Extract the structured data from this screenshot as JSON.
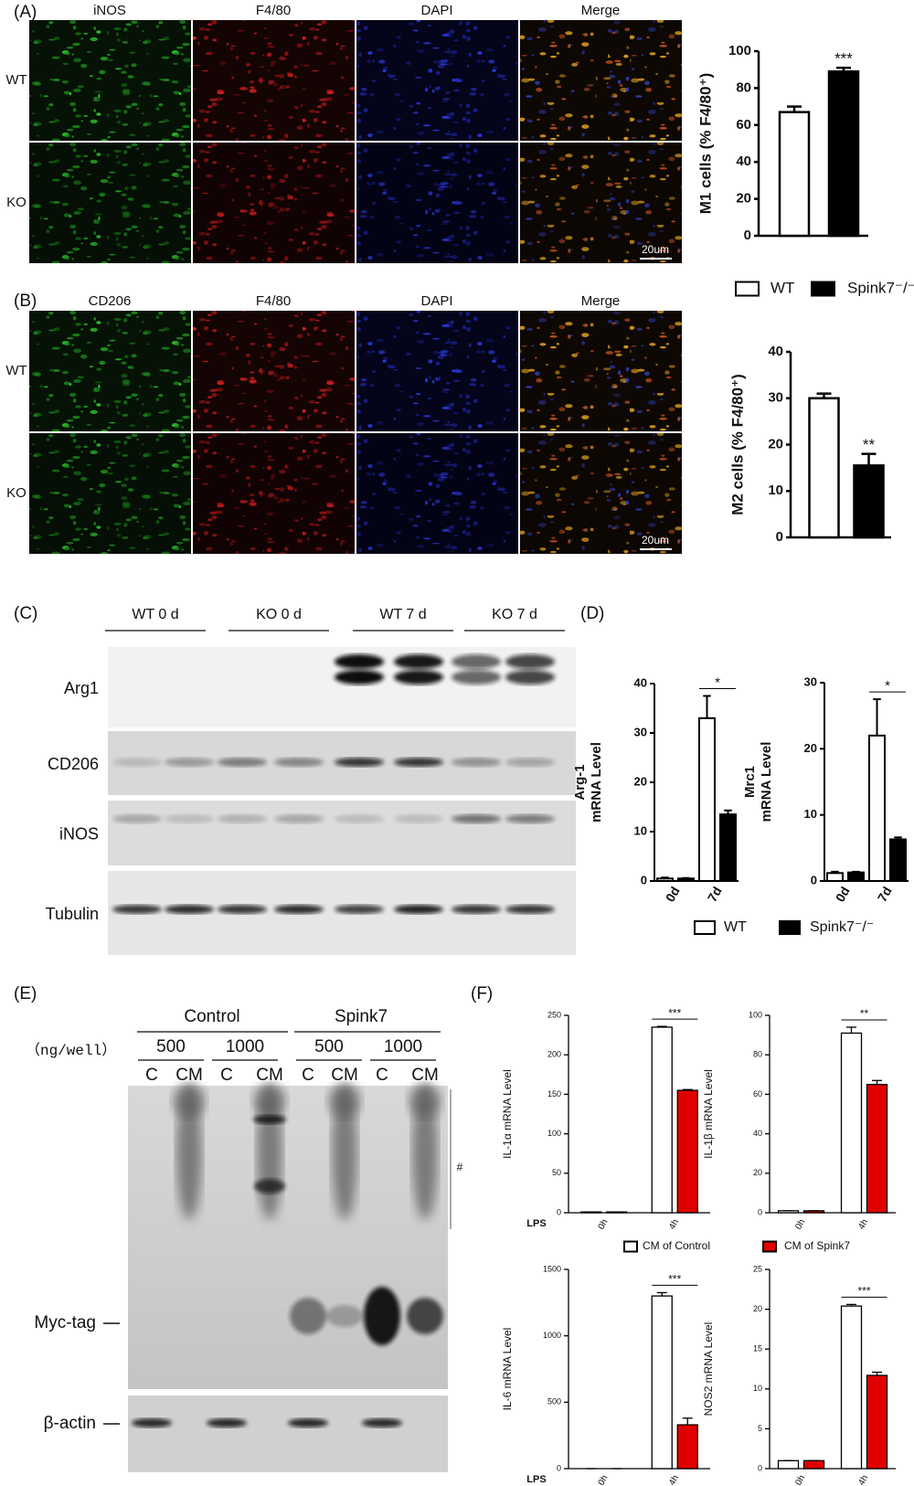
{
  "figure": {
    "panel_labels": [
      "(A)",
      "(B)",
      "(C)",
      "(D)",
      "(E)",
      "(F)"
    ],
    "micrographs": [
      {
        "columns": [
          "iNOS",
          "F4/80",
          "DAPI",
          "Merge"
        ],
        "rows": [
          "WT",
          "KO"
        ],
        "scale_bar": "20um"
      },
      {
        "columns": [
          "CD206",
          "F4/80",
          "DAPI",
          "Merge"
        ],
        "rows": [
          "WT",
          "KO"
        ],
        "scale_bar": "20um"
      }
    ],
    "blot_c": {
      "groups": [
        "WT 0 d",
        "KO 0 d",
        "WT 7 d",
        "KO 7 d"
      ],
      "proteins": [
        "Arg1",
        "CD206",
        "iNOS",
        "Tubulin"
      ]
    },
    "blot_e": {
      "groups": [
        "Control",
        "Spink7"
      ],
      "unit": "（ng/well）",
      "doses": [
        "500",
        "1000",
        "500",
        "1000"
      ],
      "lanes": [
        "C",
        "CM",
        "C",
        "CM",
        "C",
        "CM",
        "C",
        "CM"
      ],
      "proteins": [
        "Myc-tag",
        "β-actin"
      ],
      "mark": "#"
    },
    "legends": [
      [
        {
          "name": "WT",
          "color": "#ffffff"
        },
        {
          "name": "Spink7⁻/⁻",
          "color": "#000000"
        }
      ],
      [
        {
          "name": "WT",
          "color": "#ffffff"
        },
        {
          "name": "Spink7⁻/⁻",
          "color": "#000000"
        }
      ],
      [
        {
          "name": "CM of Control",
          "color": "#ffffff"
        },
        {
          "name": "CM of Spink7",
          "color": "#e00000"
        }
      ]
    ]
  },
  "chart_data": [
    {
      "type": "bar",
      "ylabel": [
        "M1 cells (% F4/80⁺)"
      ],
      "categories": [
        null,
        null
      ],
      "values": [
        67,
        89
      ],
      "errors": [
        3,
        2
      ],
      "colors": [
        "#ffffff",
        "#000000"
      ],
      "ylim": [
        0,
        100
      ],
      "yticks": [
        0,
        20,
        40,
        60,
        80,
        100
      ],
      "annotation": "***"
    },
    {
      "type": "bar",
      "ylabel": [
        "M2 cells (% F4/80⁺)"
      ],
      "categories": [
        null,
        null
      ],
      "values": [
        30,
        15.5
      ],
      "errors": [
        1,
        2.5
      ],
      "colors": [
        "#ffffff",
        "#000000"
      ],
      "ylim": [
        0,
        40
      ],
      "yticks": [
        0,
        10,
        20,
        30,
        40
      ],
      "annotation": "**"
    },
    {
      "type": "bar",
      "ylabel": [
        "Arg-1",
        "mRNA Level"
      ],
      "categories": [
        "0d",
        "7d"
      ],
      "series": [
        {
          "color": "#ffffff",
          "values": [
            0.5,
            33
          ],
          "errors": [
            0.2,
            4.5
          ]
        },
        {
          "color": "#000000",
          "values": [
            0.5,
            13.5
          ],
          "errors": [
            0.1,
            0.8
          ]
        }
      ],
      "ylim": [
        0,
        40
      ],
      "yticks": [
        0,
        10,
        20,
        30,
        40
      ],
      "annotation": "*"
    },
    {
      "type": "bar",
      "ylabel": [
        "Mrc1",
        "mRNA Level"
      ],
      "categories": [
        "0d",
        "7d"
      ],
      "series": [
        {
          "color": "#ffffff",
          "values": [
            1.2,
            22
          ],
          "errors": [
            0.2,
            5.5
          ]
        },
        {
          "color": "#000000",
          "values": [
            1.3,
            6.3
          ],
          "errors": [
            0.1,
            0.3
          ]
        }
      ],
      "ylim": [
        0,
        30
      ],
      "yticks": [
        0,
        10,
        20,
        30
      ],
      "annotation": "*"
    },
    {
      "type": "bar",
      "ylabel": [
        "IL-1α mRNA Level"
      ],
      "x_prefix": "LPS",
      "categories": [
        "0h",
        "4h"
      ],
      "series": [
        {
          "color": "#ffffff",
          "values": [
            1,
            235
          ],
          "errors": [
            0,
            1
          ]
        },
        {
          "color": "#e00000",
          "values": [
            1,
            155
          ],
          "errors": [
            0,
            1
          ]
        }
      ],
      "ylim": [
        0,
        250
      ],
      "yticks": [
        0,
        50,
        100,
        150,
        200,
        250
      ],
      "annotation": "***"
    },
    {
      "type": "bar",
      "ylabel": [
        "IL-1β mRNA Level"
      ],
      "categories": [
        "0h",
        "4h"
      ],
      "series": [
        {
          "color": "#ffffff",
          "values": [
            1,
            91
          ],
          "errors": [
            0,
            3
          ]
        },
        {
          "color": "#e00000",
          "values": [
            1,
            65
          ],
          "errors": [
            0,
            2
          ]
        }
      ],
      "ylim": [
        0,
        100
      ],
      "yticks": [
        0,
        20,
        40,
        60,
        80,
        100
      ],
      "annotation": "**"
    },
    {
      "type": "bar",
      "ylabel": [
        "IL-6 mRNA Level"
      ],
      "x_prefix": "LPS",
      "categories": [
        "0h",
        "4h"
      ],
      "series": [
        {
          "color": "#ffffff",
          "values": [
            0,
            1300
          ],
          "errors": [
            0,
            25
          ]
        },
        {
          "color": "#e00000",
          "values": [
            0,
            330
          ],
          "errors": [
            0,
            50
          ]
        }
      ],
      "ylim": [
        0,
        1500
      ],
      "yticks": [
        0,
        500,
        1000,
        1500
      ],
      "annotation": "***"
    },
    {
      "type": "bar",
      "ylabel": [
        "NOS2 mRNA Level"
      ],
      "categories": [
        "0h",
        "4h"
      ],
      "series": [
        {
          "color": "#ffffff",
          "values": [
            1,
            20.4
          ],
          "errors": [
            0,
            0.2
          ]
        },
        {
          "color": "#e00000",
          "values": [
            1,
            11.7
          ],
          "errors": [
            0,
            0.4
          ]
        }
      ],
      "ylim": [
        0,
        25
      ],
      "yticks": [
        0,
        5,
        10,
        15,
        20,
        25
      ],
      "annotation": "***"
    }
  ]
}
